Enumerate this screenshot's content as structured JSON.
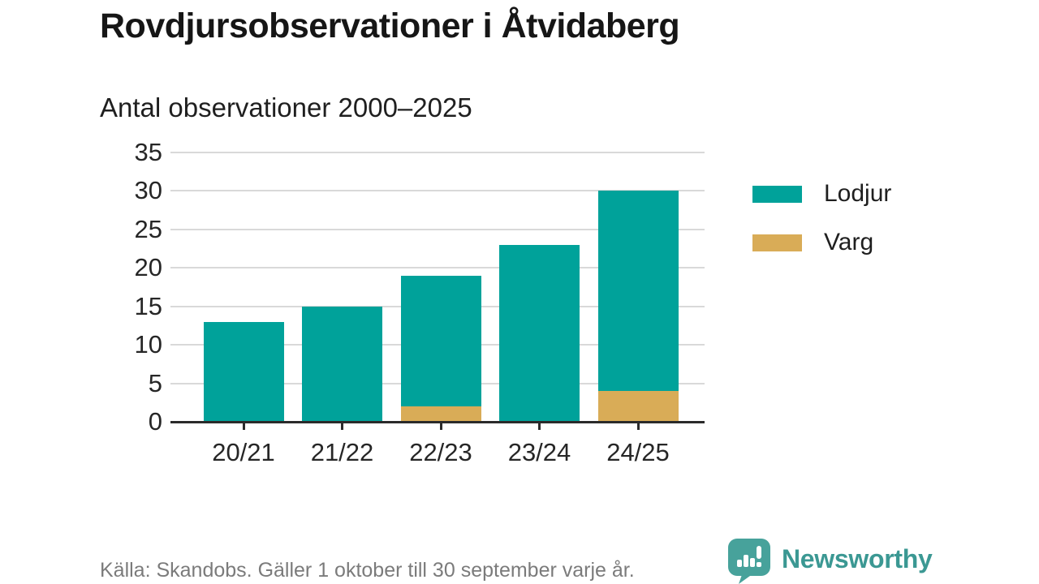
{
  "header": {
    "title": "Rovdjursobservationer i Åtvidaberg",
    "subtitle": "Antal observationer 2000–2025"
  },
  "chart_data": {
    "type": "bar",
    "stacked": true,
    "title": "Rovdjursobservationer i Åtvidaberg",
    "subtitle": "Antal observationer 2000–2025",
    "categories": [
      "20/21",
      "21/22",
      "22/23",
      "23/24",
      "24/25"
    ],
    "series": [
      {
        "name": "Lodjur",
        "color": "#00a29a",
        "values": [
          13,
          15,
          17,
          23,
          26
        ]
      },
      {
        "name": "Varg",
        "color": "#d9ac57",
        "values": [
          0,
          0,
          2,
          0,
          4
        ]
      }
    ],
    "totals": [
      13,
      15,
      19,
      23,
      30
    ],
    "ylim": [
      0,
      35
    ],
    "yticks": [
      0,
      5,
      10,
      15,
      20,
      25,
      30,
      35
    ],
    "grid": "horizontal",
    "legend_position": "right"
  },
  "footer": {
    "source": "Källa: Skandobs. Gäller 1 oktober till 30 september varje år.",
    "brand": "Newsworthy"
  }
}
